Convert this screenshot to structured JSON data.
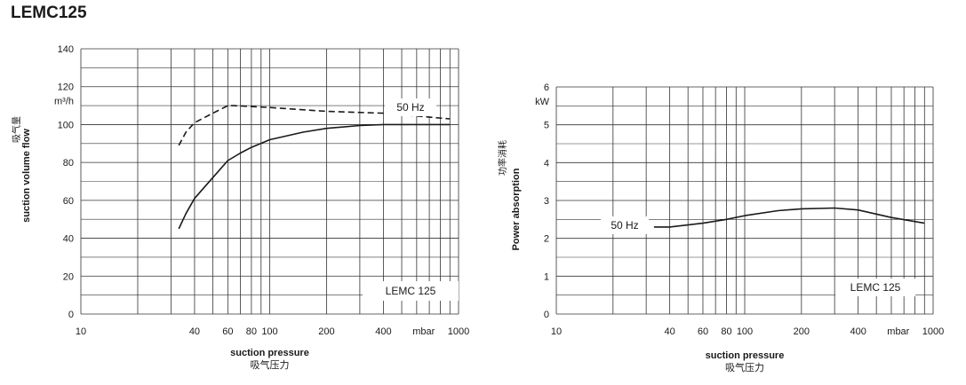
{
  "page": {
    "title": "LEMC125"
  },
  "chart_data": [
    {
      "type": "line",
      "x_scale": "log",
      "xlim": [
        10,
        1000
      ],
      "ylim": [
        0,
        140
      ],
      "x_ticks": [
        10,
        40,
        60,
        80,
        100,
        200,
        400,
        1000
      ],
      "x_unit": "mbar",
      "y_ticks": [
        0,
        20,
        40,
        60,
        80,
        100,
        120,
        140
      ],
      "y_unit": "m³/h",
      "xlabel": "suction pressure",
      "xlabel_cn": "吸气压力",
      "ylabel": "suction volume flow",
      "ylabel_cn": "吸气量",
      "grid": true,
      "box_label": "LEMC 125",
      "series": [
        {
          "name": "50 Hz",
          "style": "dashed",
          "x": [
            33,
            36,
            40,
            50,
            60,
            65,
            80,
            100,
            200,
            400,
            900
          ],
          "y": [
            89,
            96,
            101,
            106,
            110,
            110,
            109.5,
            109,
            107,
            106,
            103
          ]
        },
        {
          "style": "solid",
          "x": [
            33,
            36,
            40,
            50,
            60,
            70,
            80,
            100,
            150,
            200,
            300,
            400,
            600,
            900
          ],
          "y": [
            45,
            53,
            61,
            72,
            81,
            85,
            88,
            92,
            96,
            98,
            99.5,
            100,
            100,
            100
          ]
        }
      ]
    },
    {
      "type": "line",
      "x_scale": "log",
      "xlim": [
        10,
        1000
      ],
      "ylim": [
        0,
        6
      ],
      "x_ticks": [
        10,
        40,
        60,
        80,
        100,
        200,
        400,
        1000
      ],
      "x_unit": "mbar",
      "y_ticks": [
        0,
        1,
        2,
        3,
        4,
        5,
        6
      ],
      "y_unit": "kW",
      "xlabel": "suction pressure",
      "xlabel_cn": "吸气压力",
      "ylabel": "Power absorption",
      "ylabel_cn": "功率消耗",
      "grid": true,
      "box_label": "LEMC 125",
      "series": [
        {
          "name": "50 Hz",
          "style": "solid",
          "x": [
            33,
            40,
            60,
            80,
            100,
            150,
            200,
            300,
            400,
            600,
            900
          ],
          "y": [
            2.3,
            2.3,
            2.4,
            2.5,
            2.6,
            2.73,
            2.78,
            2.8,
            2.75,
            2.55,
            2.4
          ]
        }
      ]
    }
  ]
}
